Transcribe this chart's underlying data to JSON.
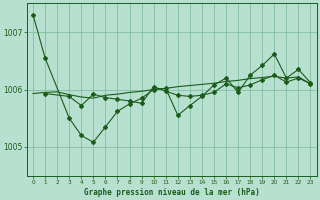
{
  "xlabel": "Graphe pression niveau de la mer (hPa)",
  "bg_color": "#b8e0d0",
  "line_color": "#1a5c1a",
  "grid_color": "#7ab898",
  "ylim": [
    1004.5,
    1007.5
  ],
  "xlim": [
    -0.5,
    23.5
  ],
  "yticks": [
    1005,
    1006,
    1007
  ],
  "xticks": [
    0,
    1,
    2,
    3,
    4,
    5,
    6,
    7,
    8,
    9,
    10,
    11,
    12,
    13,
    14,
    15,
    16,
    17,
    18,
    19,
    20,
    21,
    22,
    23
  ],
  "line1_x": [
    0,
    1,
    3,
    4,
    5,
    6,
    7,
    8,
    9,
    10,
    11,
    12,
    13,
    14,
    15,
    16,
    17,
    18,
    19,
    20,
    21,
    22,
    23
  ],
  "line1_y": [
    1007.3,
    1006.55,
    1005.5,
    1005.2,
    1005.08,
    1005.35,
    1005.62,
    1005.75,
    1005.85,
    1006.0,
    1006.02,
    1005.55,
    1005.72,
    1005.88,
    1006.08,
    1006.2,
    1005.95,
    1006.25,
    1006.42,
    1006.62,
    1006.2,
    1006.35,
    1006.12
  ],
  "line2_x": [
    1,
    3,
    4,
    5,
    6,
    7,
    8,
    9,
    10,
    11,
    12,
    13,
    14,
    15,
    16,
    17,
    18,
    19,
    20,
    21,
    22,
    23
  ],
  "line2_y": [
    1005.93,
    1005.88,
    1005.72,
    1005.92,
    1005.86,
    1005.83,
    1005.8,
    1005.76,
    1006.05,
    1005.97,
    1005.9,
    1005.88,
    1005.9,
    1005.95,
    1006.1,
    1006.03,
    1006.08,
    1006.17,
    1006.25,
    1006.13,
    1006.2,
    1006.1
  ],
  "line3_x": [
    0,
    1,
    2,
    3,
    4,
    5,
    6,
    7,
    8,
    9,
    10,
    11,
    12,
    13,
    14,
    15,
    16,
    17,
    18,
    19,
    20,
    21,
    22,
    23
  ],
  "line3_y": [
    1005.93,
    1005.95,
    1005.96,
    1005.91,
    1005.87,
    1005.85,
    1005.9,
    1005.92,
    1005.95,
    1005.97,
    1006.0,
    1006.02,
    1006.05,
    1006.07,
    1006.09,
    1006.11,
    1006.14,
    1006.16,
    1006.19,
    1006.21,
    1006.23,
    1006.2,
    1006.22,
    1006.1
  ]
}
